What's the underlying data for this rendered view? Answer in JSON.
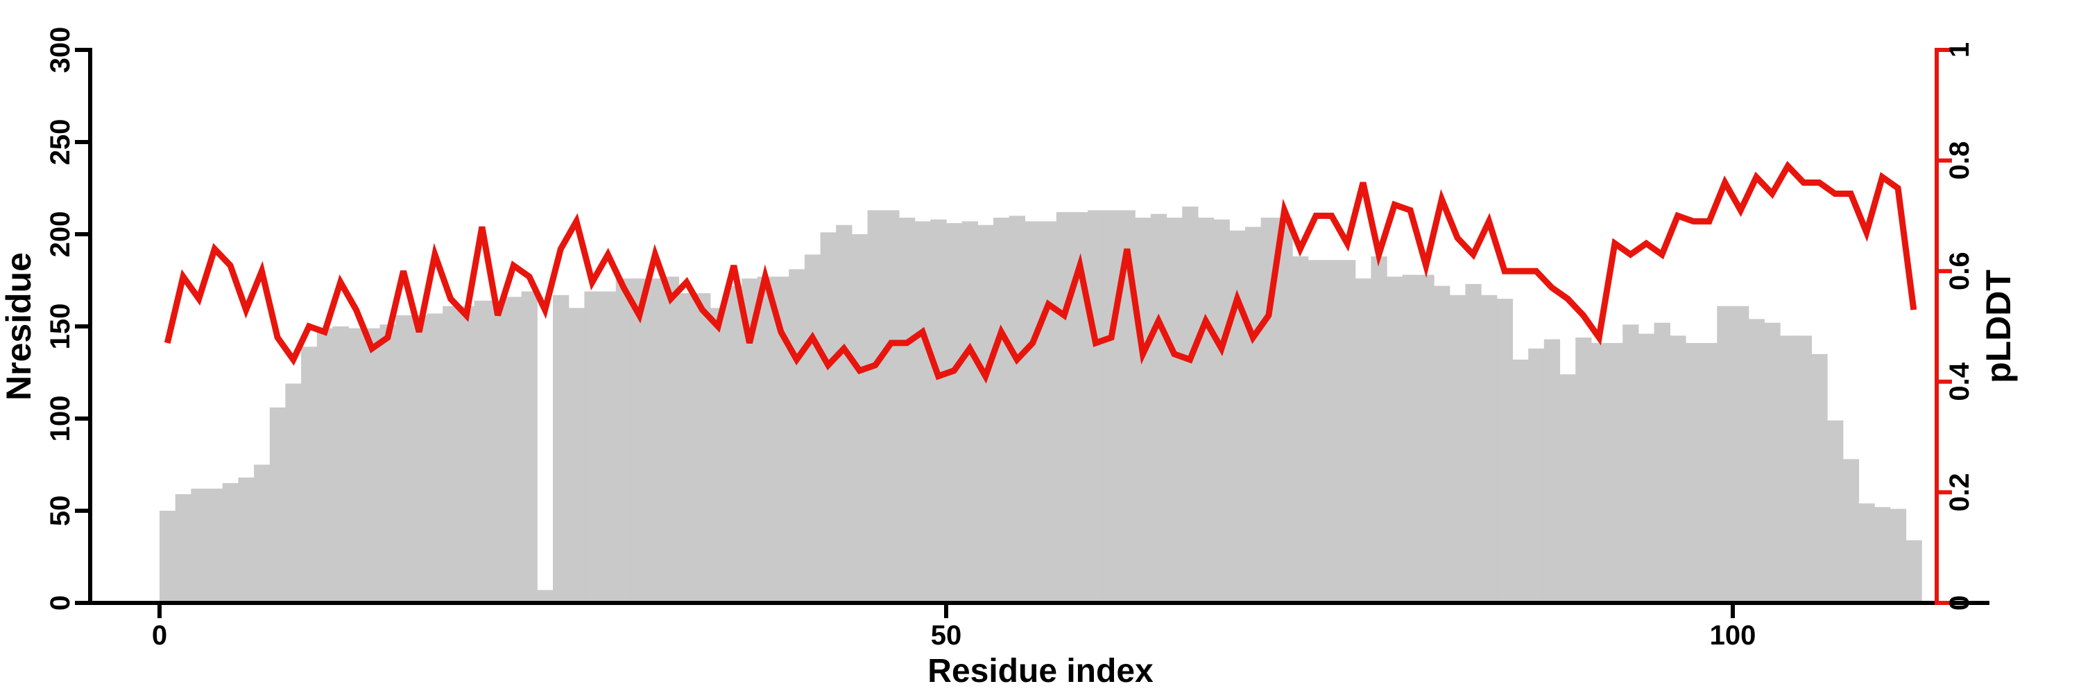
{
  "chart_data": {
    "type": "bar",
    "subtype": "dual-axis bar+line, per-residue profile",
    "title": "",
    "xlabel": "Residue index",
    "ylabel_left": "Nresidue",
    "ylabel_right": "pLDDT",
    "x_ticks": [
      0,
      50,
      100
    ],
    "left_axis": {
      "range": [
        0,
        300
      ],
      "ticks": [
        0,
        50,
        100,
        150,
        200,
        250,
        300
      ]
    },
    "right_axis": {
      "range": [
        0,
        1
      ],
      "ticks": [
        0,
        0.2,
        0.4,
        0.6,
        0.8,
        1
      ]
    },
    "x_range_bars": [
      0,
      112
    ],
    "grid": false,
    "legend": "none",
    "series": [
      {
        "name": "Nresidue",
        "type": "bar",
        "axis": "left",
        "color": "#c9c9c9",
        "values": [
          50,
          59,
          62,
          62,
          65,
          68,
          75,
          106,
          119,
          139,
          149,
          150,
          149,
          149,
          151,
          156,
          156,
          157,
          161,
          161,
          164,
          164,
          166,
          169,
          7,
          167,
          160,
          169,
          169,
          176,
          176,
          176,
          177,
          168,
          168,
          160,
          172,
          176,
          177,
          177,
          181,
          189,
          201,
          205,
          200,
          213,
          213,
          209,
          207,
          208,
          206,
          207,
          205,
          209,
          210,
          207,
          207,
          212,
          212,
          213,
          213,
          213,
          209,
          211,
          209,
          215,
          209,
          208,
          202,
          204,
          209,
          209,
          188,
          186,
          186,
          186,
          176,
          188,
          177,
          178,
          178,
          172,
          167,
          173,
          167,
          165,
          132,
          138,
          143,
          124,
          144,
          141,
          141,
          151,
          146,
          152,
          145,
          141,
          141,
          161,
          161,
          154,
          152,
          145,
          145,
          135,
          99,
          78,
          54,
          52,
          51,
          34
        ]
      },
      {
        "name": "pLDDT",
        "type": "line",
        "axis": "right",
        "color": "#e8150d",
        "values": [
          0.47,
          0.59,
          0.55,
          0.64,
          0.61,
          0.53,
          0.6,
          0.48,
          0.44,
          0.5,
          0.49,
          0.58,
          0.53,
          0.46,
          0.48,
          0.6,
          0.49,
          0.63,
          0.55,
          0.52,
          0.68,
          0.52,
          0.61,
          0.59,
          0.53,
          0.64,
          0.69,
          0.58,
          0.63,
          0.57,
          0.52,
          0.63,
          0.55,
          0.58,
          0.53,
          0.5,
          0.61,
          0.47,
          0.59,
          0.49,
          0.44,
          0.48,
          0.43,
          0.46,
          0.42,
          0.43,
          0.47,
          0.47,
          0.49,
          0.41,
          0.42,
          0.46,
          0.41,
          0.49,
          0.44,
          0.47,
          0.54,
          0.52,
          0.61,
          0.47,
          0.48,
          0.64,
          0.45,
          0.51,
          0.45,
          0.44,
          0.51,
          0.46,
          0.55,
          0.48,
          0.52,
          0.71,
          0.64,
          0.7,
          0.7,
          0.65,
          0.76,
          0.63,
          0.72,
          0.71,
          0.61,
          0.73,
          0.66,
          0.63,
          0.69,
          0.6,
          0.6,
          0.6,
          0.57,
          0.55,
          0.52,
          0.48,
          0.65,
          0.63,
          0.65,
          0.63,
          0.7,
          0.69,
          0.69,
          0.76,
          0.71,
          0.77,
          0.74,
          0.79,
          0.76,
          0.76,
          0.74,
          0.74,
          0.67,
          0.77,
          0.75,
          0.53
        ]
      }
    ]
  },
  "colors": {
    "bar": "#c9c9c9",
    "line": "#e8150d",
    "axis": "#000000",
    "background": "#ffffff"
  },
  "labels": {
    "x_title": "Residue index",
    "y_left_title": "Nresidue",
    "y_right_title": "pLDDT"
  }
}
